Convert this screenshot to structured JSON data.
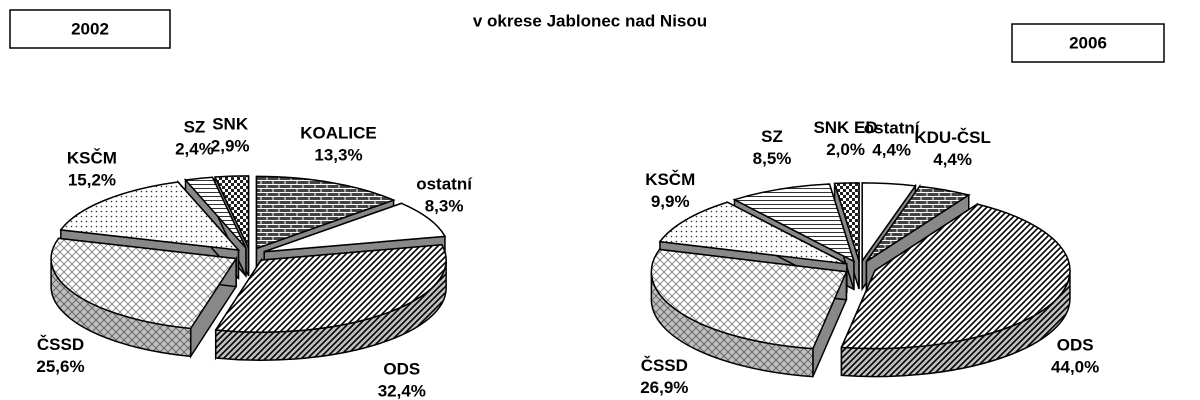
{
  "title": "v okrese Jablonec nad Nisou",
  "chart_data": [
    {
      "type": "pie",
      "title": "2002",
      "categories": [
        "KOALICE",
        "ostatní",
        "ODS",
        "ČSSD",
        "KSČM",
        "SZ",
        "SNK"
      ],
      "values": [
        13.3,
        8.3,
        32.4,
        25.6,
        15.2,
        2.4,
        2.9
      ],
      "value_labels": [
        "13,3%",
        "8,3%",
        "32,4%",
        "25,6%",
        "15,2%",
        "2,4%",
        "2,9%"
      ]
    },
    {
      "type": "pie",
      "title": "2006",
      "categories": [
        "ostatní",
        "KDU-ČSL",
        "ODS",
        "ČSSD",
        "KSČM",
        "SZ",
        "SNK ED"
      ],
      "values": [
        4.4,
        4.4,
        44.0,
        26.9,
        9.9,
        8.5,
        2.0
      ],
      "value_labels": [
        "4,4%",
        "4,4%",
        "44,0%",
        "26,9%",
        "9,9%",
        "8,5%",
        "2,0%"
      ]
    }
  ]
}
